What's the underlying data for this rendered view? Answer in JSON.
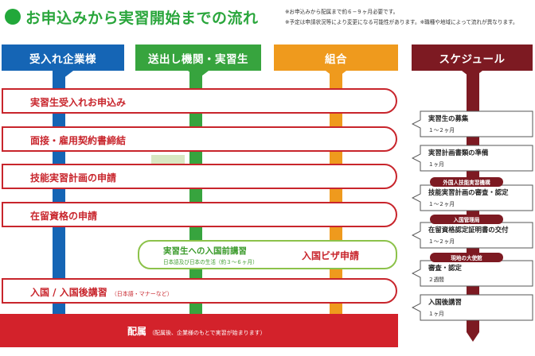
{
  "title": "お申込みから実習開始までの流れ",
  "notes": [
    "※お申込みから配属まで約６−９ヶ月必要です。",
    "※予定は申請状況等により変更になる可能性があります。※職種や地域によって流れが異なります。"
  ],
  "columns": [
    {
      "label": "受入れ企業様",
      "color": "#1565b5"
    },
    {
      "label": "送出し機関・実習生",
      "color": "#37a43e"
    },
    {
      "label": "組合",
      "color": "#ef9a1d"
    },
    {
      "label": "スケジュール",
      "color": "#7d1a22"
    }
  ],
  "steps": [
    {
      "label": "実習生受入れお申込み"
    },
    {
      "label": "面接・雇用契約書締結"
    },
    {
      "label": "技能実習計画の申請"
    },
    {
      "label": "在留資格の申請"
    },
    {
      "label": "入国 / 入国後講習",
      "note": "（日本語・マナーなど）"
    }
  ],
  "visa": {
    "sub_label": "実習生への入国前講習",
    "sub_note": "日本語及び日本の生活（約３〜６ヶ月）",
    "main_label": "入国ビザ申請"
  },
  "bottom": {
    "label": "配属",
    "note": "（配属後、企業様のもとで実習が始まります）"
  },
  "schedule": [
    {
      "label": "実習生の募集",
      "duration": "１〜２ヶ月"
    },
    {
      "label": "実習計画書類の準備",
      "duration": "１ヶ月"
    },
    {
      "agency": "外国人技能実習機構",
      "label": "技能実習計画の審査・認定",
      "duration": "１〜２ヶ月"
    },
    {
      "agency": "入国管理局",
      "label": "在留資格認定証明書の交付",
      "duration": "１〜２ヶ月"
    },
    {
      "agency": "現地の大使館",
      "label": "審査・認定",
      "duration": "２週間"
    },
    {
      "label": "入国後講習",
      "duration": "１ヶ月"
    }
  ]
}
